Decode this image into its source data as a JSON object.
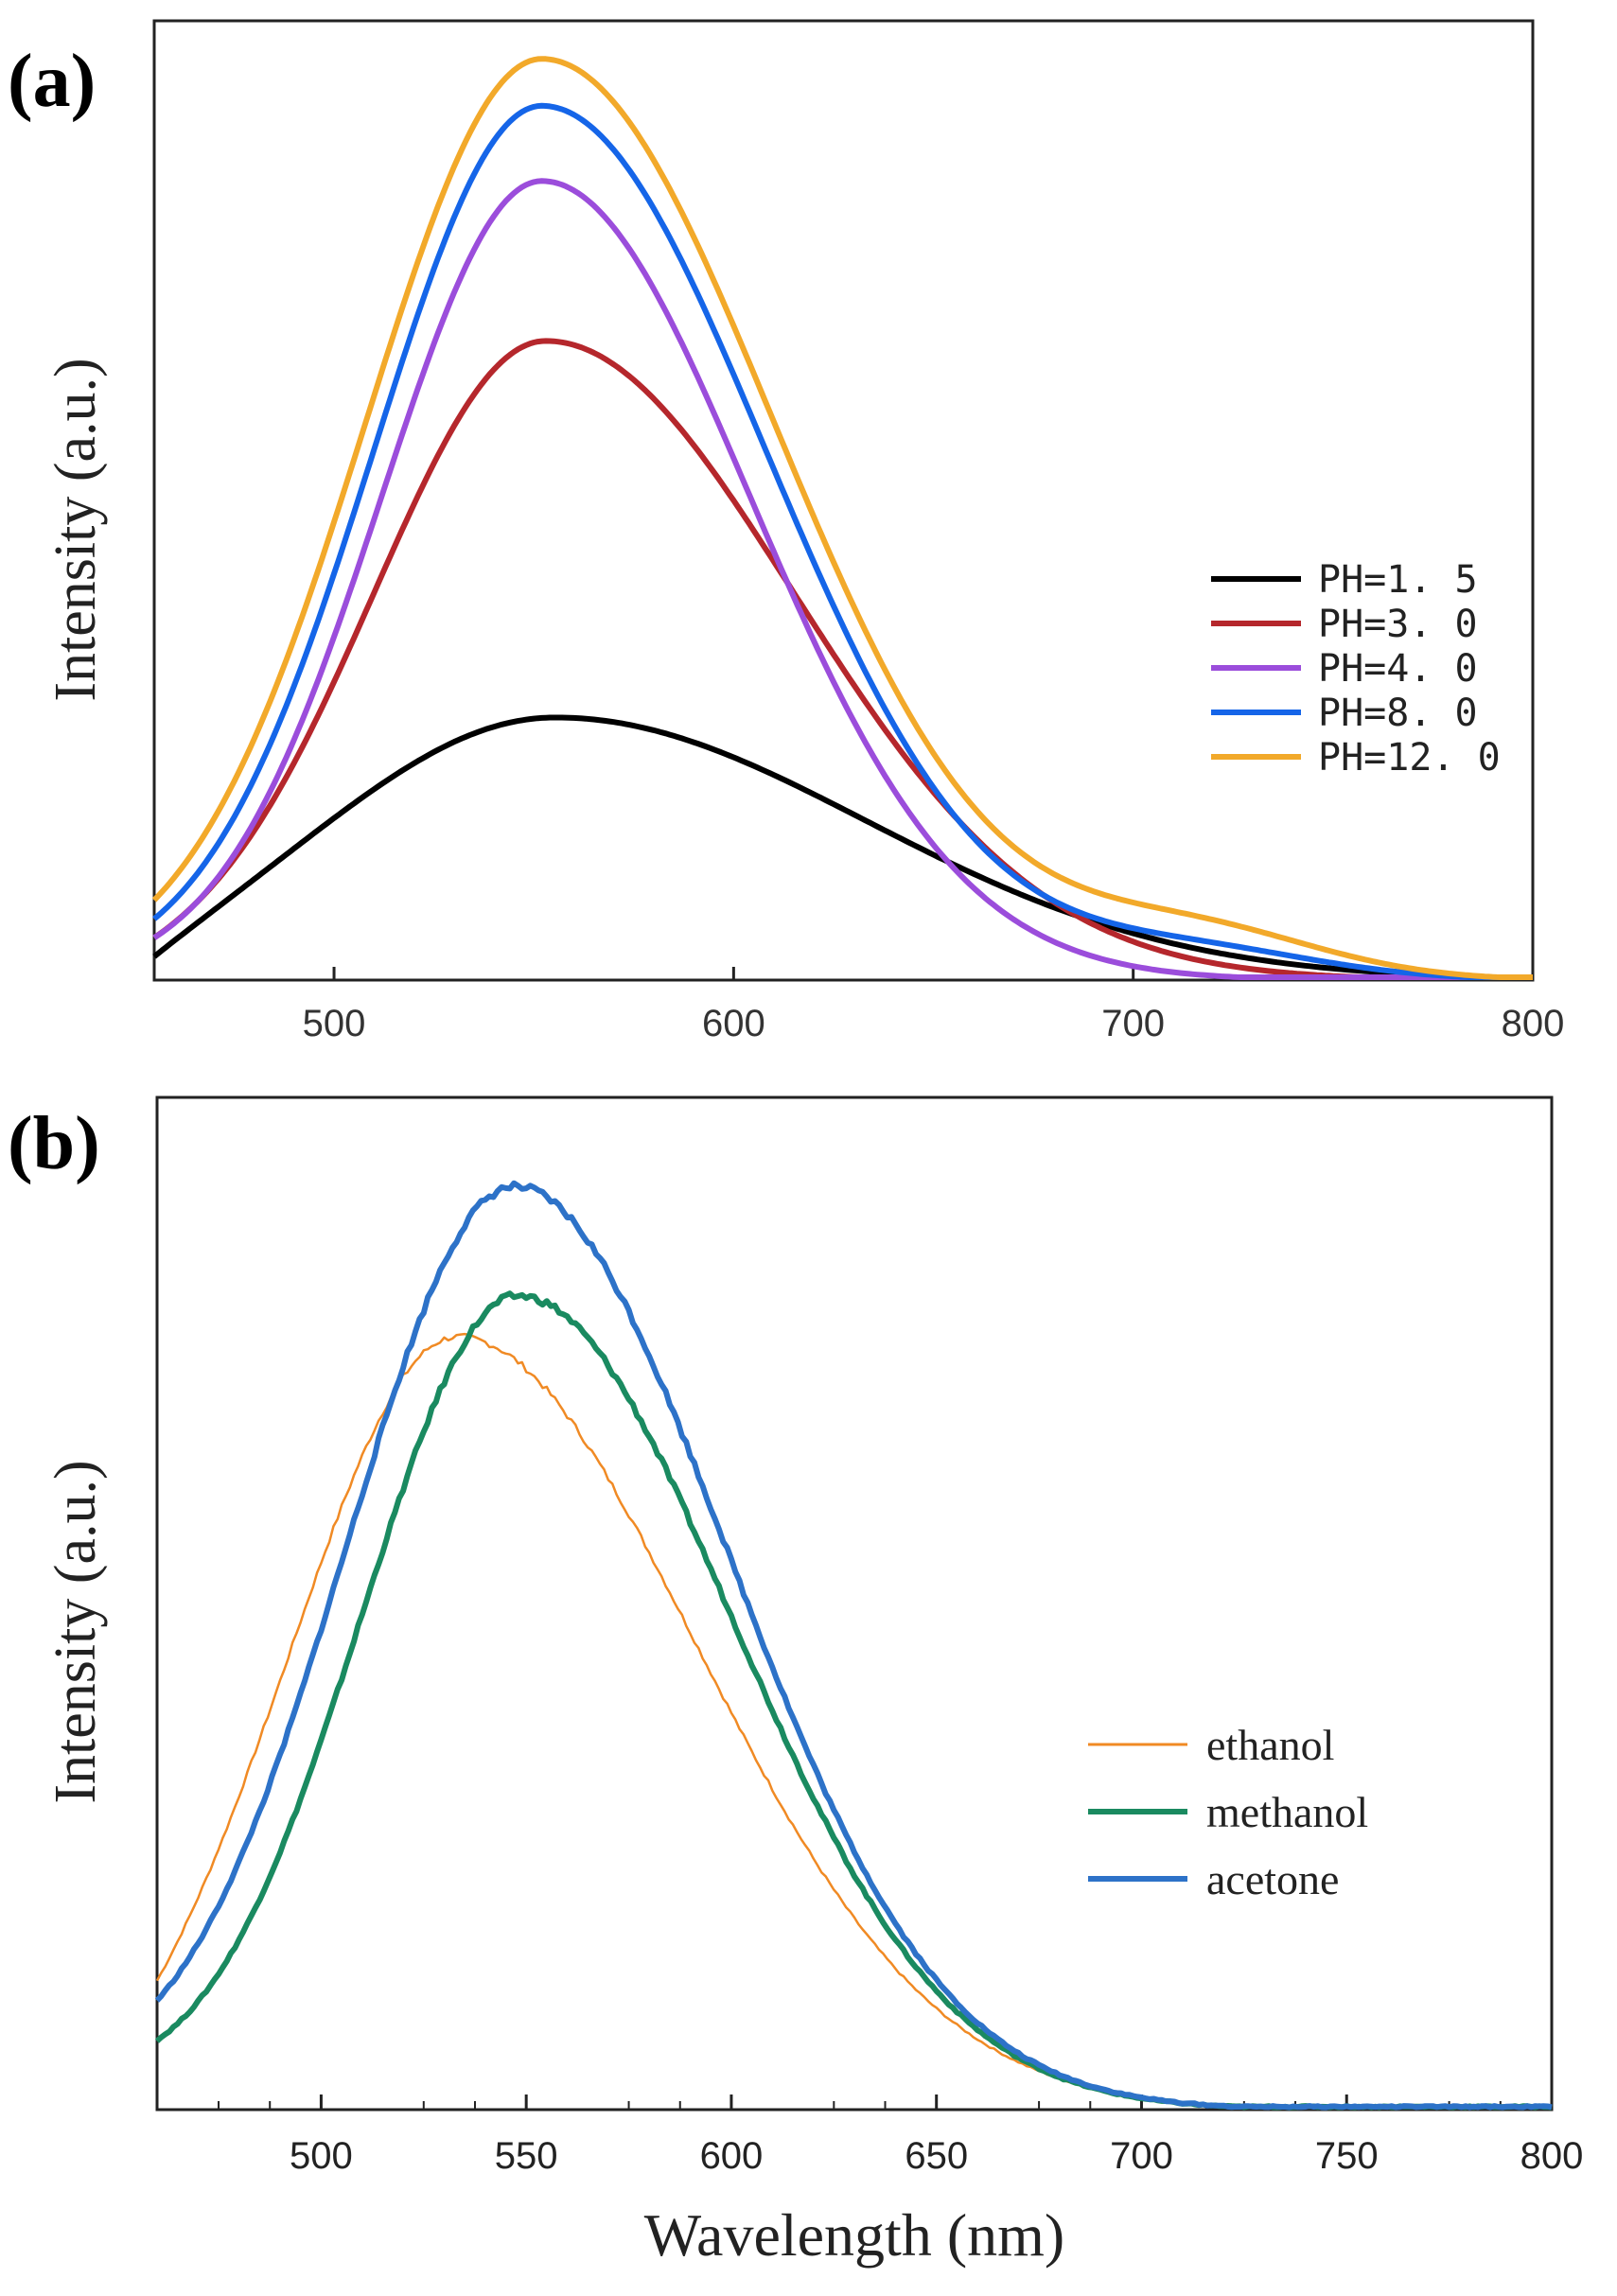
{
  "chart_data": [
    {
      "panel": "(a)",
      "type": "line",
      "xlabel": "",
      "ylabel": "Intensity (a.u.)",
      "xlim": [
        455,
        800
      ],
      "ylim": [
        0,
        100
      ],
      "xticks": [
        500,
        600,
        700,
        800
      ],
      "legend_position": "right",
      "series": [
        {
          "name": "PH=1. 5",
          "color": "#000000",
          "peak_x": 555,
          "peak_y": 28,
          "w_left": 58,
          "w_right": 78,
          "tail_amp": 0,
          "start_y": 2.5
        },
        {
          "name": "PH=3. 0",
          "color": "#b5272c",
          "peak_x": 553,
          "peak_y": 68,
          "w_left": 43,
          "w_right": 62,
          "tail_amp": 0,
          "start_y": 4.5
        },
        {
          "name": "PH=4. 0",
          "color": "#9b4ddb",
          "peak_x": 552,
          "peak_y": 85,
          "w_left": 40,
          "w_right": 52,
          "tail_amp": 0,
          "start_y": 4.5
        },
        {
          "name": "PH=8. 0",
          "color": "#1565e8",
          "peak_x": 552,
          "peak_y": 93,
          "w_left": 42,
          "w_right": 56,
          "tail_amp": 3,
          "start_y": 6.5
        },
        {
          "name": "PH=12. 0",
          "color": "#f2a92a",
          "peak_x": 552,
          "peak_y": 98,
          "w_left": 44,
          "w_right": 58,
          "tail_amp": 5,
          "start_y": 8.5
        }
      ]
    },
    {
      "panel": "(b)",
      "type": "line",
      "xlabel": "Wavelength (nm)",
      "ylabel": "Intensity (a.u.)",
      "xlim": [
        460,
        800
      ],
      "ylim": [
        0,
        100
      ],
      "xticks": [
        500,
        550,
        600,
        650,
        700,
        750,
        800
      ],
      "legend_position": "right",
      "series": [
        {
          "name": "ethanol",
          "color": "#f08a24",
          "peak_x": 533,
          "peak_y": 78,
          "w_left": 40,
          "w_right": 58,
          "tail_amp": 0,
          "start_y": 13
        },
        {
          "name": "methanol",
          "color": "#1a8a60",
          "peak_x": 548,
          "peak_y": 82,
          "w_left": 38,
          "w_right": 52,
          "tail_amp": 0,
          "start_y": 7
        },
        {
          "name": "acetone",
          "color": "#2d72c8",
          "peak_x": 547,
          "peak_y": 93,
          "w_left": 41,
          "w_right": 52,
          "tail_amp": 0,
          "start_y": 11
        }
      ]
    }
  ]
}
